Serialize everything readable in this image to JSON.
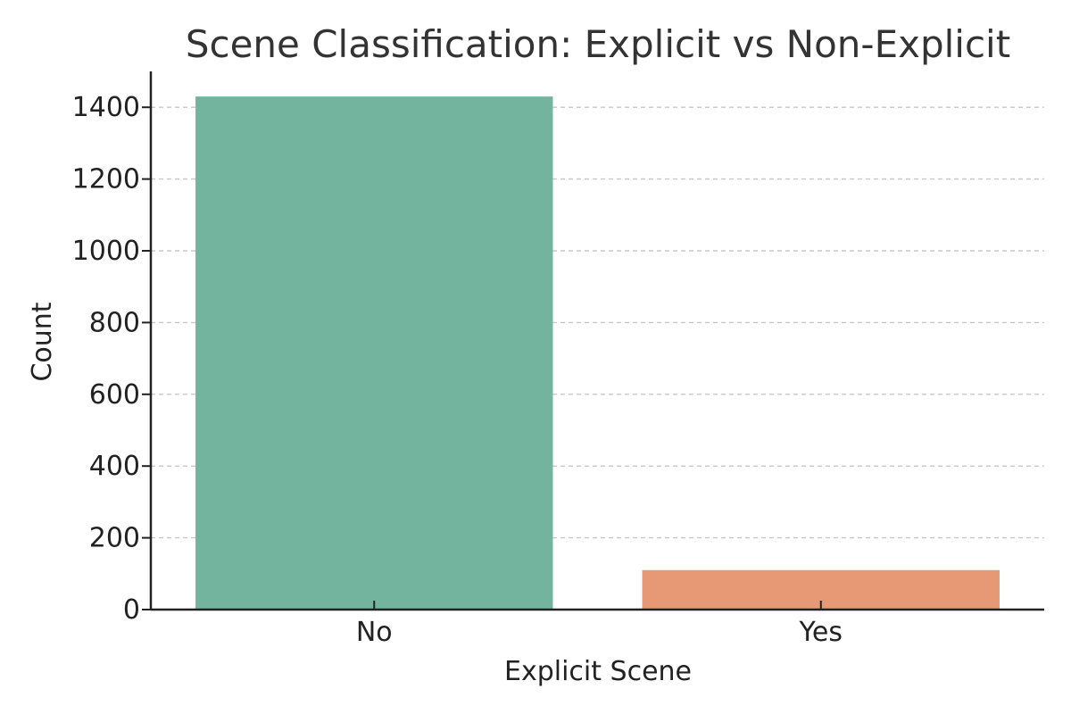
{
  "chart_data": {
    "type": "bar",
    "title": "Scene Classification: Explicit vs Non-Explicit",
    "xlabel": "Explicit Scene",
    "ylabel": "Count",
    "categories": [
      "No",
      "Yes"
    ],
    "values": [
      1430,
      110
    ],
    "colors": [
      "#73b49f",
      "#e79874"
    ],
    "ylim": [
      0,
      1500
    ],
    "yticks": [
      0,
      200,
      400,
      600,
      800,
      1000,
      1200,
      1400
    ],
    "grid": true,
    "grid_axis": "y"
  }
}
